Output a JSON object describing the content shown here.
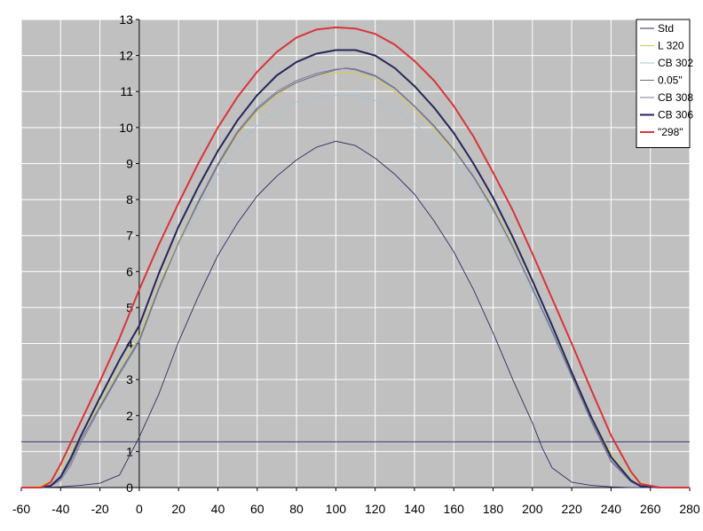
{
  "chart_data": {
    "type": "line",
    "title": "",
    "xlabel": "",
    "ylabel": "",
    "xlim": [
      -60,
      280
    ],
    "ylim": [
      0,
      13
    ],
    "x_ticks": [
      -60,
      -40,
      -20,
      0,
      20,
      40,
      60,
      80,
      100,
      120,
      140,
      160,
      180,
      200,
      220,
      240,
      260,
      280
    ],
    "y_ticks": [
      0,
      1,
      2,
      3,
      4,
      5,
      6,
      7,
      8,
      9,
      10,
      11,
      12,
      13
    ],
    "grid": true,
    "legend_position": "top-right",
    "plot_background": "#c0c0c0",
    "grid_color": "#ffffff",
    "reference_line": {
      "y": 1.27,
      "color": "#4a4a7a"
    },
    "series": [
      {
        "name": "Std",
        "color": "#2e2e5e",
        "stroke_width": 0.9,
        "points": [
          [
            -60,
            0
          ],
          [
            -50,
            0
          ],
          [
            -40,
            0.02
          ],
          [
            -30,
            0.06
          ],
          [
            -20,
            0.12
          ],
          [
            -10,
            0.35
          ],
          [
            0,
            1.4
          ],
          [
            10,
            2.6
          ],
          [
            20,
            4.05
          ],
          [
            30,
            5.3
          ],
          [
            40,
            6.45
          ],
          [
            50,
            7.35
          ],
          [
            60,
            8.1
          ],
          [
            70,
            8.65
          ],
          [
            80,
            9.1
          ],
          [
            90,
            9.45
          ],
          [
            100,
            9.62
          ],
          [
            110,
            9.5
          ],
          [
            120,
            9.15
          ],
          [
            130,
            8.7
          ],
          [
            140,
            8.15
          ],
          [
            150,
            7.4
          ],
          [
            160,
            6.55
          ],
          [
            170,
            5.5
          ],
          [
            180,
            4.3
          ],
          [
            190,
            3.0
          ],
          [
            200,
            1.8
          ],
          [
            205,
            1.1
          ],
          [
            210,
            0.55
          ],
          [
            220,
            0.15
          ],
          [
            230,
            0.06
          ],
          [
            240,
            0.02
          ],
          [
            250,
            0
          ],
          [
            260,
            0
          ],
          [
            280,
            0
          ]
        ]
      },
      {
        "name": "L 320",
        "color": "#d4cc5a",
        "stroke_width": 1.1,
        "points": [
          [
            -60,
            0
          ],
          [
            -50,
            0.05
          ],
          [
            -45,
            0.2
          ],
          [
            -40,
            0.5
          ],
          [
            -30,
            1.4
          ],
          [
            -20,
            2.35
          ],
          [
            -10,
            3.3
          ],
          [
            0,
            4.2
          ],
          [
            10,
            5.6
          ],
          [
            20,
            6.85
          ],
          [
            30,
            7.95
          ],
          [
            40,
            8.95
          ],
          [
            50,
            9.8
          ],
          [
            60,
            10.45
          ],
          [
            70,
            10.9
          ],
          [
            80,
            11.25
          ],
          [
            90,
            11.45
          ],
          [
            100,
            11.52
          ],
          [
            110,
            11.5
          ],
          [
            120,
            11.35
          ],
          [
            130,
            11.0
          ],
          [
            140,
            10.5
          ],
          [
            150,
            9.95
          ],
          [
            160,
            9.35
          ],
          [
            170,
            8.65
          ],
          [
            180,
            7.8
          ],
          [
            190,
            6.75
          ],
          [
            200,
            5.55
          ],
          [
            210,
            4.35
          ],
          [
            220,
            3.15
          ],
          [
            230,
            1.95
          ],
          [
            240,
            0.95
          ],
          [
            250,
            0.35
          ],
          [
            258,
            0.05
          ],
          [
            270,
            0
          ],
          [
            280,
            0
          ]
        ]
      },
      {
        "name": "CB 302",
        "color": "#a9c3d1",
        "stroke_width": 1.0,
        "points": [
          [
            -60,
            0
          ],
          [
            -50,
            0.02
          ],
          [
            -45,
            0.12
          ],
          [
            -40,
            0.4
          ],
          [
            -30,
            1.3
          ],
          [
            -20,
            2.3
          ],
          [
            -10,
            3.25
          ],
          [
            0,
            4.15
          ],
          [
            10,
            5.55
          ],
          [
            20,
            6.75
          ],
          [
            30,
            7.75
          ],
          [
            40,
            8.7
          ],
          [
            50,
            9.5
          ],
          [
            60,
            10.05
          ],
          [
            70,
            10.45
          ],
          [
            80,
            10.72
          ],
          [
            90,
            10.85
          ],
          [
            100,
            10.9
          ],
          [
            110,
            10.9
          ],
          [
            120,
            10.75
          ],
          [
            130,
            10.5
          ],
          [
            140,
            10.1
          ],
          [
            150,
            9.65
          ],
          [
            160,
            9.1
          ],
          [
            170,
            8.45
          ],
          [
            180,
            7.65
          ],
          [
            190,
            6.6
          ],
          [
            200,
            5.45
          ],
          [
            210,
            4.25
          ],
          [
            220,
            3.05
          ],
          [
            230,
            1.9
          ],
          [
            240,
            0.9
          ],
          [
            250,
            0.3
          ],
          [
            258,
            0.05
          ],
          [
            270,
            0
          ],
          [
            280,
            0
          ]
        ]
      },
      {
        "name": "0.05\"",
        "color": "#6a6a8a",
        "stroke_width": 1.0,
        "points": [
          [
            -60,
            0
          ],
          [
            -50,
            0
          ],
          [
            -45,
            0.05
          ],
          [
            -40,
            0.25
          ],
          [
            -35,
            0.7
          ],
          [
            -30,
            1.3
          ],
          [
            -20,
            2.25
          ],
          [
            -10,
            3.2
          ],
          [
            0,
            4.1
          ],
          [
            10,
            5.55
          ],
          [
            20,
            6.8
          ],
          [
            30,
            7.9
          ],
          [
            40,
            8.95
          ],
          [
            50,
            9.85
          ],
          [
            60,
            10.5
          ],
          [
            70,
            10.95
          ],
          [
            80,
            11.25
          ],
          [
            90,
            11.45
          ],
          [
            100,
            11.6
          ],
          [
            105,
            11.65
          ],
          [
            110,
            11.62
          ],
          [
            120,
            11.45
          ],
          [
            130,
            11.1
          ],
          [
            140,
            10.6
          ],
          [
            150,
            10.05
          ],
          [
            160,
            9.4
          ],
          [
            170,
            8.65
          ],
          [
            180,
            7.75
          ],
          [
            190,
            6.7
          ],
          [
            200,
            5.55
          ],
          [
            210,
            4.35
          ],
          [
            220,
            3.1
          ],
          [
            230,
            1.85
          ],
          [
            240,
            0.75
          ],
          [
            250,
            0.18
          ],
          [
            255,
            0.03
          ],
          [
            265,
            0
          ],
          [
            280,
            0
          ]
        ]
      },
      {
        "name": "CB 308",
        "color": "#7a7a9a",
        "stroke_width": 1.0,
        "points": [
          [
            -60,
            0
          ],
          [
            -50,
            0
          ],
          [
            -45,
            0.04
          ],
          [
            -40,
            0.2
          ],
          [
            -35,
            0.6
          ],
          [
            -30,
            1.2
          ],
          [
            -20,
            2.2
          ],
          [
            -10,
            3.15
          ],
          [
            0,
            4.05
          ],
          [
            10,
            5.5
          ],
          [
            20,
            6.8
          ],
          [
            30,
            7.95
          ],
          [
            40,
            9.0
          ],
          [
            50,
            9.9
          ],
          [
            60,
            10.55
          ],
          [
            70,
            11.0
          ],
          [
            80,
            11.3
          ],
          [
            90,
            11.5
          ],
          [
            100,
            11.62
          ],
          [
            105,
            11.64
          ],
          [
            110,
            11.6
          ],
          [
            120,
            11.42
          ],
          [
            130,
            11.08
          ],
          [
            140,
            10.58
          ],
          [
            150,
            10.02
          ],
          [
            160,
            9.38
          ],
          [
            170,
            8.62
          ],
          [
            180,
            7.72
          ],
          [
            190,
            6.68
          ],
          [
            200,
            5.52
          ],
          [
            210,
            4.32
          ],
          [
            220,
            3.08
          ],
          [
            230,
            1.82
          ],
          [
            240,
            0.72
          ],
          [
            250,
            0.16
          ],
          [
            255,
            0.03
          ],
          [
            265,
            0
          ],
          [
            280,
            0
          ]
        ]
      },
      {
        "name": "CB 306",
        "color": "#26265a",
        "stroke_width": 2.0,
        "points": [
          [
            -60,
            0
          ],
          [
            -50,
            0
          ],
          [
            -45,
            0.05
          ],
          [
            -40,
            0.3
          ],
          [
            -35,
            0.8
          ],
          [
            -30,
            1.4
          ],
          [
            -20,
            2.5
          ],
          [
            -10,
            3.55
          ],
          [
            0,
            4.5
          ],
          [
            10,
            5.95
          ],
          [
            20,
            7.25
          ],
          [
            30,
            8.35
          ],
          [
            40,
            9.35
          ],
          [
            50,
            10.2
          ],
          [
            60,
            10.9
          ],
          [
            70,
            11.45
          ],
          [
            80,
            11.82
          ],
          [
            90,
            12.05
          ],
          [
            100,
            12.15
          ],
          [
            110,
            12.15
          ],
          [
            120,
            12.0
          ],
          [
            130,
            11.65
          ],
          [
            140,
            11.15
          ],
          [
            150,
            10.55
          ],
          [
            160,
            9.85
          ],
          [
            170,
            9.0
          ],
          [
            180,
            8.05
          ],
          [
            190,
            6.95
          ],
          [
            200,
            5.75
          ],
          [
            210,
            4.5
          ],
          [
            220,
            3.2
          ],
          [
            230,
            1.95
          ],
          [
            240,
            0.85
          ],
          [
            250,
            0.2
          ],
          [
            255,
            0.04
          ],
          [
            265,
            0
          ],
          [
            280,
            0
          ]
        ]
      },
      {
        "name": "\"298\"",
        "color": "#d9343a",
        "stroke_width": 2.0,
        "points": [
          [
            -60,
            0
          ],
          [
            -50,
            0
          ],
          [
            -45,
            0.15
          ],
          [
            -40,
            0.65
          ],
          [
            -30,
            1.8
          ],
          [
            -20,
            2.95
          ],
          [
            -10,
            4.15
          ],
          [
            0,
            5.5
          ],
          [
            10,
            6.75
          ],
          [
            20,
            7.9
          ],
          [
            30,
            9.0
          ],
          [
            40,
            10.0
          ],
          [
            50,
            10.85
          ],
          [
            60,
            11.55
          ],
          [
            70,
            12.1
          ],
          [
            80,
            12.5
          ],
          [
            90,
            12.72
          ],
          [
            100,
            12.78
          ],
          [
            110,
            12.75
          ],
          [
            120,
            12.6
          ],
          [
            130,
            12.3
          ],
          [
            140,
            11.85
          ],
          [
            150,
            11.3
          ],
          [
            160,
            10.6
          ],
          [
            170,
            9.75
          ],
          [
            180,
            8.75
          ],
          [
            190,
            7.7
          ],
          [
            200,
            6.5
          ],
          [
            210,
            5.25
          ],
          [
            220,
            4.0
          ],
          [
            230,
            2.7
          ],
          [
            240,
            1.45
          ],
          [
            250,
            0.45
          ],
          [
            255,
            0.1
          ],
          [
            265,
            0
          ],
          [
            280,
            0
          ]
        ]
      }
    ]
  }
}
